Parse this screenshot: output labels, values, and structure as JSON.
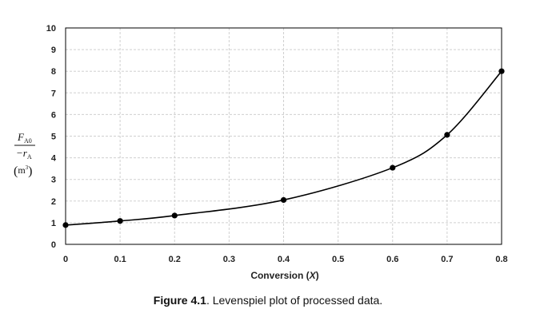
{
  "chart_data": {
    "type": "line",
    "x": [
      0,
      0.1,
      0.2,
      0.4,
      0.6,
      0.7,
      0.8
    ],
    "y": [
      0.89,
      1.08,
      1.33,
      2.05,
      3.54,
      5.06,
      8.0
    ],
    "xticks": [
      "0",
      "0.1",
      "0.2",
      "0.3",
      "0.4",
      "0.5",
      "0.6",
      "0.7",
      "0.8"
    ],
    "yticks": [
      "0",
      "1",
      "2",
      "3",
      "4",
      "5",
      "6",
      "7",
      "8",
      "9",
      "10"
    ],
    "xlim": [
      0,
      0.8
    ],
    "ylim": [
      0,
      10
    ],
    "xlabel": {
      "text": "Conversion (",
      "var": "X",
      "close": ")"
    },
    "ylabel": {
      "numerator": "F",
      "numerator_sub": "A0",
      "denominator": "−r",
      "denominator_sub": "A",
      "unit": "m",
      "unit_sup": "3"
    },
    "grid": true,
    "smooth": true,
    "markers": true,
    "colors": {
      "line": "#000000",
      "grid": "#d0d0d0",
      "axis": "#000000"
    }
  },
  "caption": {
    "label": "Figure 4.1",
    "text": ". Levenspiel plot of processed data."
  }
}
